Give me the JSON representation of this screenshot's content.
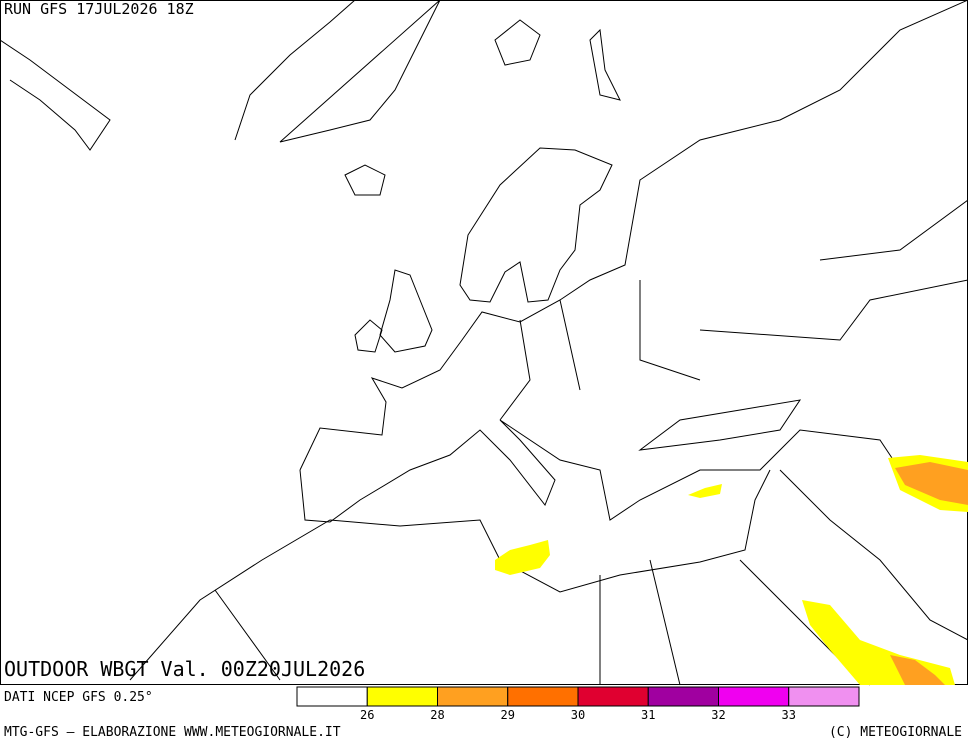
{
  "header": {
    "run": "RUN GFS 17JUL2026 18Z"
  },
  "map": {
    "title": "OUTDOOR WBGT Val. 00Z20JUL2026"
  },
  "footer": {
    "source": "DATI NCEP GFS 0.25°",
    "credit": "MTG-GFS — ELABORAZIONE WWW.METEOGIORNALE.IT",
    "copyright": "(C) METEOGIORNALE"
  },
  "legend": {
    "colors": [
      "#ffffff",
      "#ffff00",
      "#ffa020",
      "#ff7000",
      "#e00030",
      "#a000a0",
      "#f000f0",
      "#f090f0"
    ],
    "labels": [
      "26",
      "28",
      "29",
      "30",
      "31",
      "32",
      "33"
    ]
  }
}
